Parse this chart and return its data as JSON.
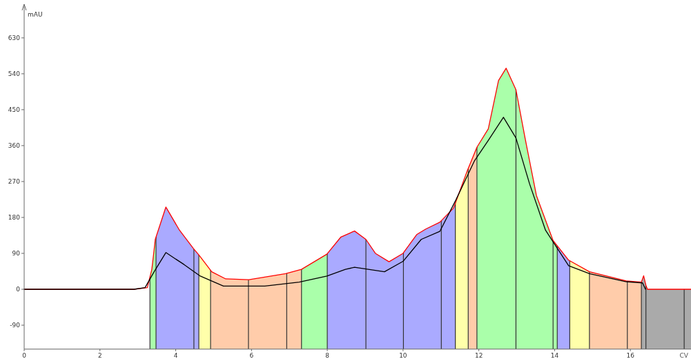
{
  "chart_data": {
    "type": "line",
    "xlabel": "CV",
    "ylabel": "mAU",
    "xlim": [
      0,
      17.6
    ],
    "ylim": [
      -150,
      700
    ],
    "xticks": [
      0,
      2,
      4,
      6,
      8,
      10,
      12,
      14,
      16
    ],
    "yticks": [
      -90,
      0,
      90,
      180,
      270,
      360,
      450,
      540,
      630
    ],
    "series": [
      {
        "color": "#ff0000",
        "x": [
          0,
          2.9,
          3.25,
          3.37,
          3.43,
          3.46,
          3.74,
          4.1,
          4.47,
          4.62,
          4.95,
          5.32,
          5.93,
          6.9,
          7.32,
          7.99,
          8.36,
          8.72,
          9.02,
          9.27,
          9.63,
          10.0,
          10.36,
          10.6,
          10.97,
          11.33,
          11.7,
          11.95,
          12.25,
          12.52,
          12.72,
          12.98,
          13.22,
          13.52,
          13.96,
          14.37,
          14.92,
          15.89,
          16.29,
          16.35,
          16.41,
          16.45,
          17.6
        ],
        "values": [
          0,
          0,
          4,
          50,
          99,
          125,
          206,
          148,
          102,
          85,
          44,
          26,
          24,
          39,
          50,
          88,
          131,
          146,
          125,
          90,
          69,
          90,
          137,
          151,
          168,
          203,
          298,
          356,
          402,
          523,
          554,
          500,
          379,
          235,
          122,
          73,
          44,
          21,
          18,
          34,
          10,
          0,
          0
        ]
      },
      {
        "color": "#000000",
        "x": [
          0,
          2.9,
          3.19,
          3.43,
          3.74,
          4.22,
          4.65,
          5.26,
          6.35,
          7.26,
          7.99,
          8.48,
          8.72,
          9.51,
          10.0,
          10.48,
          10.97,
          11.39,
          11.88,
          12.25,
          12.65,
          12.98,
          13.34,
          13.76,
          14.37,
          14.92,
          15.89,
          16.32,
          16.4
        ],
        "values": [
          0,
          0,
          4,
          44,
          92,
          62,
          33,
          8,
          8,
          18,
          33,
          50,
          55,
          44,
          70,
          125,
          145,
          223,
          321,
          373,
          431,
          379,
          264,
          148,
          59,
          39,
          19,
          16,
          0
        ]
      }
    ],
    "bands": [
      {
        "axis": "x",
        "from": 3.32,
        "to": 3.48,
        "color": "#aaffaa"
      },
      {
        "axis": "x",
        "from": 3.48,
        "to": 4.61,
        "color": "#aaaaff"
      },
      {
        "axis": "x",
        "from": 4.61,
        "to": 4.92,
        "color": "#ffffaa"
      },
      {
        "axis": "x",
        "from": 4.92,
        "to": 7.32,
        "color": "#ffccaa"
      },
      {
        "axis": "x",
        "from": 7.32,
        "to": 8.0,
        "color": "#aaffaa"
      },
      {
        "axis": "x",
        "from": 8.0,
        "to": 11.38,
        "color": "#aaaaff"
      },
      {
        "axis": "x",
        "from": 11.38,
        "to": 11.72,
        "color": "#ffffaa"
      },
      {
        "axis": "x",
        "from": 11.72,
        "to": 11.95,
        "color": "#ffccaa"
      },
      {
        "axis": "x",
        "from": 11.95,
        "to": 14.07,
        "color": "#aaffaa"
      },
      {
        "axis": "x",
        "from": 14.07,
        "to": 14.4,
        "color": "#aaaaff"
      },
      {
        "axis": "x",
        "from": 14.4,
        "to": 14.92,
        "color": "#ffffaa"
      },
      {
        "axis": "x",
        "from": 14.92,
        "to": 16.29,
        "color": "#ffccaa"
      },
      {
        "axis": "x",
        "from": 16.29,
        "to": 17.6,
        "color": "#aaaaaa"
      }
    ],
    "ref_lines": [
      {
        "axis": "x",
        "value": 3.32
      },
      {
        "axis": "x",
        "value": 3.48
      },
      {
        "axis": "x",
        "value": 4.48
      },
      {
        "axis": "x",
        "value": 4.61
      },
      {
        "axis": "x",
        "value": 4.92
      },
      {
        "axis": "x",
        "value": 5.92
      },
      {
        "axis": "x",
        "value": 6.93
      },
      {
        "axis": "x",
        "value": 7.32
      },
      {
        "axis": "x",
        "value": 8.0
      },
      {
        "axis": "x",
        "value": 9.02
      },
      {
        "axis": "x",
        "value": 10.01
      },
      {
        "axis": "x",
        "value": 11.01
      },
      {
        "axis": "x",
        "value": 11.38
      },
      {
        "axis": "x",
        "value": 11.72
      },
      {
        "axis": "x",
        "value": 11.95
      },
      {
        "axis": "x",
        "value": 12.98
      },
      {
        "axis": "x",
        "value": 13.96
      },
      {
        "axis": "x",
        "value": 14.07
      },
      {
        "axis": "x",
        "value": 14.4
      },
      {
        "axis": "x",
        "value": 14.92
      },
      {
        "axis": "x",
        "value": 15.92
      },
      {
        "axis": "x",
        "value": 16.29
      },
      {
        "axis": "x",
        "value": 16.41
      },
      {
        "axis": "x",
        "value": 17.42
      }
    ]
  }
}
